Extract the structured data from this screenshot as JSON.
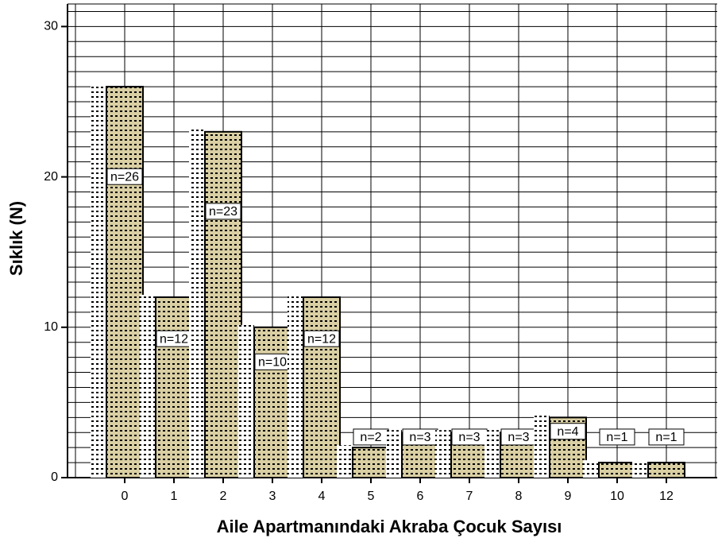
{
  "chart_data": {
    "type": "bar",
    "x_label": "Aile Apartmanındaki Akraba Çocuk Sayısı",
    "y_label": "Sıklık (N)",
    "categories": [
      "0",
      "1",
      "2",
      "3",
      "4",
      "5",
      "6",
      "7",
      "8",
      "9",
      "10",
      "12"
    ],
    "values": [
      26,
      12,
      23,
      10,
      12,
      2,
      3,
      3,
      3,
      4,
      1,
      1
    ],
    "value_labels": [
      "n=26",
      "n=12",
      "n=23",
      "n=10",
      "n=12",
      "n=2",
      "n=3",
      "n=3",
      "n=3",
      "n=4",
      "n=1",
      "n=1"
    ],
    "color": "#d9cfa3",
    "ylim": [
      0,
      31.5
    ],
    "yticks": [
      0,
      10,
      20,
      30
    ],
    "yminor": [
      1,
      2,
      3,
      4,
      5,
      6,
      7,
      8,
      9,
      11,
      12,
      13,
      14,
      15,
      16,
      17,
      18,
      19,
      21,
      22,
      23,
      24,
      25,
      26,
      27,
      28,
      29,
      31
    ],
    "grid": true
  }
}
